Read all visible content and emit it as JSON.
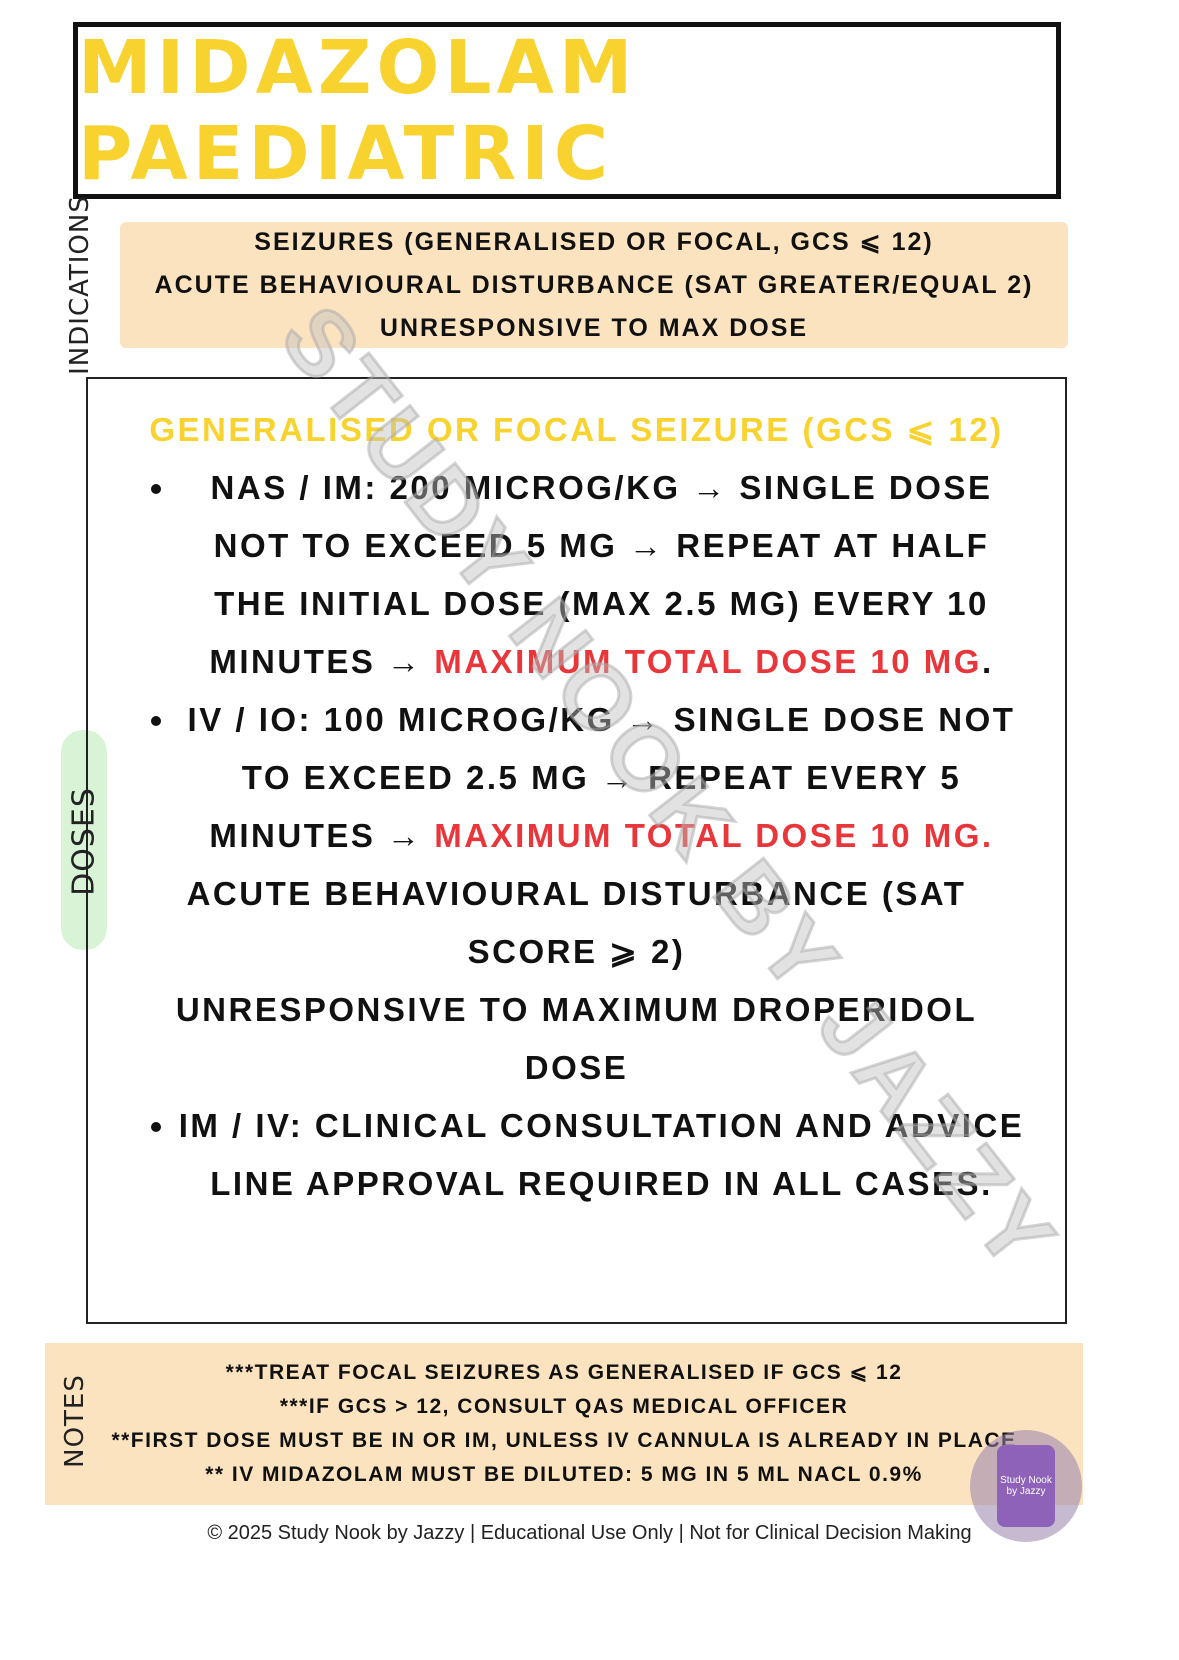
{
  "title": "Midazolam Paediatric",
  "labels": {
    "indications": "INDICATIONS",
    "doses": "DOSES",
    "notes": "NOTES"
  },
  "indications": [
    "Seizures (generalised or focal, GCS ⩽ 12)",
    "Acute behavioural disturbance (SAT greater/equal 2)",
    "Unresponsive to max dose"
  ],
  "doses": {
    "seizure_heading": "Generalised or focal seizure (GCS ⩽ 12)",
    "seizure_items": [
      {
        "text": "NAS / IM: 200 microg/kg → single dose not to exceed 5 mg → repeat at half the initial dose (max 2.5 mg) every 10 minutes → ",
        "highlight": "maximum total dose 10 mg",
        "tail": "."
      },
      {
        "text": "IV / IO: 100 microg/kg → single dose not to exceed 2.5 mg → repeat every 5 minutes → ",
        "highlight": "maximum total dose 10 mg.",
        "tail": ""
      }
    ],
    "abd_heading_1": "Acute behavioural disturbance (SAT score ⩾ 2)",
    "abd_heading_2": "Unresponsive to maximum droperidol dose",
    "abd_items": [
      "IM / IV: clinical consultation and advice line approval required in all cases."
    ]
  },
  "notes": [
    "***Treat focal seizures as generalised if GCS ⩽ 12",
    "***If GCS > 12, consult QAS medical officer",
    "**First dose must be IN or IM, unless IV cannula is already in place",
    "** IV midazolam must be diluted: 5 mg in 5 mL NaCl 0.9%"
  ],
  "footer": "© 2025 Study Nook by Jazzy | Educational Use Only | Not for Clinical Decision Making",
  "watermark": "Study Nook by Jazzy",
  "logo_text": "Study Nook by Jazzy",
  "colors": {
    "title": "#F8D330",
    "highlight": "#E8363A",
    "band": "#FCE3C0",
    "doses_pill": "#D9F3D6"
  }
}
